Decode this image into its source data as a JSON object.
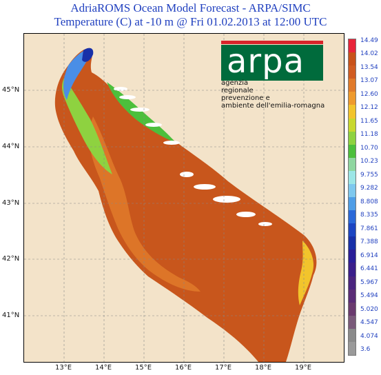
{
  "title": {
    "line1": "AdriaROMS Ocean Model Forecast - ARPA/SIMC",
    "line2": "Temperature (C) at -10 m @ Fri 01.02.2013 at 12:00 UTC"
  },
  "map": {
    "lat_labels": [
      "45°N",
      "44°N",
      "43°N",
      "42°N",
      "41°N"
    ],
    "lon_labels": [
      "13°E",
      "14°E",
      "15°E",
      "16°E",
      "17°E",
      "18°E",
      "19°E"
    ]
  },
  "colorbar": {
    "labels": [
      "14.49",
      "14.02",
      "13.54",
      "13.07",
      "12.60",
      "12.12",
      "11.65",
      "11.18",
      "10.70",
      "10.23",
      "9.755",
      "9.282",
      "8.808",
      "8.335",
      "7.861",
      "7.388",
      "6.914",
      "6.441",
      "5.967",
      "5.494",
      "5.020",
      "4.547",
      "4.074",
      "3.6"
    ],
    "colors": [
      "#e8243a",
      "#c8521a",
      "#d05c22",
      "#e07a2a",
      "#ee9a2c",
      "#f2c42c",
      "#c8d82e",
      "#8ed240",
      "#4cbf3c",
      "#8ed6a0",
      "#9ce6e6",
      "#7ec8ee",
      "#4e9de6",
      "#2a68d8",
      "#1c45c2",
      "#1830a8",
      "#2a1e98",
      "#3a1e8a",
      "#4a247e",
      "#5a2c76",
      "#6a3a6e",
      "#7a5a7a",
      "#8a8a8a",
      "#9a9a9a"
    ]
  },
  "logo": {
    "word": "arpa",
    "tagline": [
      "agenzia",
      "regionale",
      "prevenzione e",
      "ambiente dell'emilia-romagna"
    ],
    "icon": "arpa-logo"
  },
  "colors": {
    "land": "#f3e3c9",
    "sea_main": "#c8561c",
    "coast_cold": "#4a8ee6",
    "title": "#1f3fbf"
  }
}
